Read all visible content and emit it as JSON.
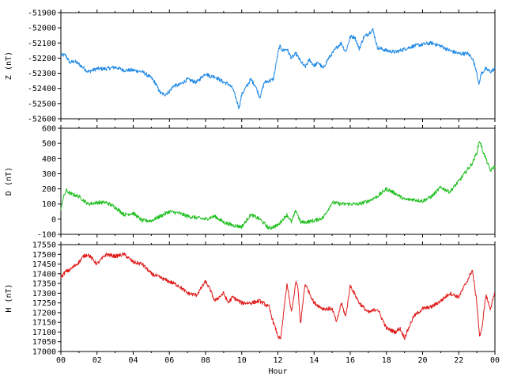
{
  "chart_data": [
    {
      "type": "line",
      "ylabel": "Z (nT)",
      "ylim": [
        -52600,
        -51900
      ],
      "yticks": [
        -51900,
        -52000,
        -52100,
        -52200,
        -52300,
        -52400,
        -52500,
        -52600
      ],
      "xlim": [
        0,
        24
      ],
      "color": "#1e88e5",
      "series": [
        {
          "x": [
            0,
            0.25,
            0.5,
            0.75,
            1,
            1.5,
            2,
            2.5,
            3,
            3.5,
            4,
            4.5,
            5,
            5.25,
            5.5,
            5.75,
            6,
            6.25,
            6.5,
            7,
            7.5,
            8,
            8.25,
            8.5,
            8.75,
            9,
            9.25,
            9.5,
            9.75,
            9.85,
            10,
            10.25,
            10.5,
            10.75,
            11,
            11.25,
            11.5,
            11.75,
            12,
            12.1,
            12.25,
            12.5,
            12.75,
            13,
            13.25,
            13.5,
            13.75,
            14,
            14.25,
            14.5,
            14.75,
            15,
            15.25,
            15.5,
            15.75,
            16,
            16.25,
            16.5,
            16.75,
            17,
            17.25,
            17.5,
            17.75,
            18,
            18.5,
            19,
            19.5,
            20,
            20.5,
            21,
            21.5,
            22,
            22.5,
            22.75,
            23,
            23.1,
            23.25,
            23.5,
            23.75,
            24
          ],
          "y": [
            -52180,
            -52180,
            -52230,
            -52220,
            -52240,
            -52290,
            -52270,
            -52270,
            -52260,
            -52280,
            -52280,
            -52290,
            -52330,
            -52370,
            -52430,
            -52440,
            -52420,
            -52380,
            -52380,
            -52340,
            -52360,
            -52300,
            -52320,
            -52320,
            -52340,
            -52360,
            -52370,
            -52400,
            -52490,
            -52530,
            -52440,
            -52390,
            -52340,
            -52380,
            -52460,
            -52360,
            -52350,
            -52340,
            -52170,
            -52120,
            -52150,
            -52140,
            -52200,
            -52170,
            -52220,
            -52260,
            -52210,
            -52250,
            -52230,
            -52270,
            -52210,
            -52170,
            -52130,
            -52100,
            -52160,
            -52060,
            -52060,
            -52140,
            -52060,
            -52040,
            -52010,
            -52130,
            -52140,
            -52150,
            -52160,
            -52140,
            -52120,
            -52110,
            -52100,
            -52120,
            -52150,
            -52170,
            -52170,
            -52200,
            -52290,
            -52380,
            -52300,
            -52270,
            -52290,
            -52270
          ]
        }
      ]
    },
    {
      "type": "line",
      "ylabel": "D (nT)",
      "ylim": [
        -100,
        600
      ],
      "yticks": [
        600,
        500,
        400,
        300,
        200,
        100,
        0,
        -100
      ],
      "xlim": [
        0,
        24
      ],
      "color": "#1fbf1f",
      "series": [
        {
          "x": [
            0,
            0.1,
            0.3,
            0.5,
            1,
            1.5,
            2,
            2.5,
            3,
            3.5,
            4,
            4.5,
            5,
            5.5,
            6,
            6.5,
            7,
            7.5,
            8,
            8.5,
            9,
            9.5,
            10,
            10.5,
            11,
            11.5,
            12,
            12.5,
            12.75,
            13,
            13.25,
            13.5,
            14,
            14.5,
            15,
            15.5,
            16,
            16.5,
            17,
            17.5,
            18,
            18.5,
            19,
            19.5,
            20,
            20.5,
            21,
            21.5,
            22,
            22.5,
            22.75,
            23,
            23.15,
            23.3,
            23.5,
            23.75,
            24
          ],
          "y": [
            60,
            130,
            190,
            170,
            150,
            100,
            110,
            110,
            80,
            30,
            40,
            -10,
            -10,
            20,
            50,
            40,
            20,
            10,
            0,
            20,
            -20,
            -40,
            -50,
            30,
            0,
            -60,
            -40,
            30,
            -20,
            60,
            -20,
            -20,
            -10,
            10,
            110,
            100,
            100,
            100,
            120,
            150,
            200,
            170,
            130,
            130,
            120,
            150,
            210,
            180,
            250,
            330,
            370,
            440,
            520,
            460,
            400,
            320,
            350
          ]
        }
      ]
    },
    {
      "type": "line",
      "ylabel": "H (nT)",
      "xlabel": "Hour",
      "ylim": [
        17000,
        17550
      ],
      "yticks": [
        17550,
        17500,
        17450,
        17400,
        17350,
        17300,
        17250,
        17200,
        17150,
        17100,
        17050,
        17000
      ],
      "xlim": [
        0,
        24
      ],
      "xticks": [
        "00",
        "02",
        "04",
        "06",
        "08",
        "10",
        "12",
        "14",
        "16",
        "18",
        "20",
        "22",
        "00"
      ],
      "color": "#e01b1b",
      "series": [
        {
          "x": [
            0,
            0.25,
            0.5,
            1,
            1.25,
            1.5,
            2,
            2.5,
            3,
            3.5,
            4,
            4.5,
            5,
            5.5,
            6,
            6.5,
            7,
            7.5,
            8,
            8.25,
            8.5,
            9,
            9.25,
            9.5,
            10,
            10.5,
            11,
            11.5,
            11.75,
            12,
            12.15,
            12.5,
            12.75,
            13,
            13.1,
            13.25,
            13.5,
            14,
            14.5,
            15,
            15.25,
            15.5,
            15.75,
            16,
            16.5,
            17,
            17.5,
            18,
            18.5,
            18.75,
            19,
            19.5,
            20,
            20.5,
            21,
            21.5,
            22,
            22.5,
            22.75,
            23,
            23.15,
            23.25,
            23.5,
            23.75,
            24
          ],
          "y": [
            17380,
            17410,
            17420,
            17460,
            17490,
            17500,
            17450,
            17500,
            17490,
            17500,
            17460,
            17450,
            17400,
            17380,
            17360,
            17340,
            17300,
            17290,
            17360,
            17320,
            17260,
            17300,
            17250,
            17280,
            17250,
            17250,
            17260,
            17230,
            17150,
            17080,
            17060,
            17350,
            17200,
            17360,
            17330,
            17140,
            17350,
            17250,
            17220,
            17220,
            17150,
            17250,
            17180,
            17340,
            17250,
            17200,
            17220,
            17120,
            17100,
            17120,
            17070,
            17180,
            17220,
            17230,
            17260,
            17300,
            17280,
            17370,
            17420,
            17250,
            17080,
            17100,
            17290,
            17220,
            17300
          ]
        }
      ]
    }
  ]
}
